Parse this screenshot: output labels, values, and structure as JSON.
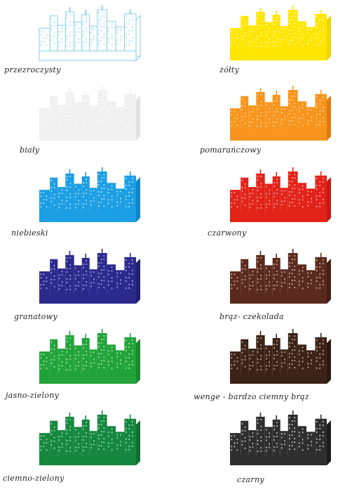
{
  "swatches": [
    {
      "label": "przezroczysty",
      "fill": "#ffffff",
      "side": "#ffffff",
      "window": "#ffffff",
      "stroke": "#6fc3df",
      "outline": true
    },
    {
      "label": "żółty",
      "fill": "#ffe600",
      "side": "#f2d400",
      "window": "#fff6a8",
      "stroke": "none",
      "outline": false
    },
    {
      "label": "biały",
      "fill": "#f0f0f0",
      "side": "#e2e2e2",
      "window": "#ffffff",
      "stroke": "none",
      "outline": false
    },
    {
      "label": "pomarańczowy",
      "fill": "#f7941d",
      "side": "#e07b10",
      "window": "#ffd08a",
      "stroke": "none",
      "outline": false
    },
    {
      "label": "niebieski",
      "fill": "#1b9ee3",
      "side": "#0e86c8",
      "window": "#a9dcf7",
      "stroke": "none",
      "outline": false
    },
    {
      "label": "czarwony",
      "fill": "#e2231a",
      "side": "#c51a12",
      "window": "#f59b95",
      "stroke": "none",
      "outline": false
    },
    {
      "label": "granatowy",
      "fill": "#2b2a8c",
      "side": "#201f70",
      "window": "#9d9ce0",
      "stroke": "none",
      "outline": false
    },
    {
      "label": "brąz- czekolada",
      "fill": "#5a2a1e",
      "side": "#461f15",
      "window": "#c9a79c",
      "stroke": "none",
      "outline": false
    },
    {
      "label": "jasno-zielony",
      "fill": "#22a33a",
      "side": "#188a2e",
      "window": "#9fe0aa",
      "stroke": "none",
      "outline": false
    },
    {
      "label": "wenge - bardzo ciemny brąz",
      "fill": "#3b2317",
      "side": "#2c1a11",
      "window": "#b8a298",
      "stroke": "none",
      "outline": false
    },
    {
      "label": "ciemno-zielony",
      "fill": "#15873f",
      "side": "#0f6e32",
      "window": "#93d9ac",
      "stroke": "none",
      "outline": false
    },
    {
      "label": "czarny",
      "fill": "#2e2e2e",
      "side": "#1e1e1e",
      "window": "#bdbdbd",
      "stroke": "none",
      "outline": false
    }
  ]
}
